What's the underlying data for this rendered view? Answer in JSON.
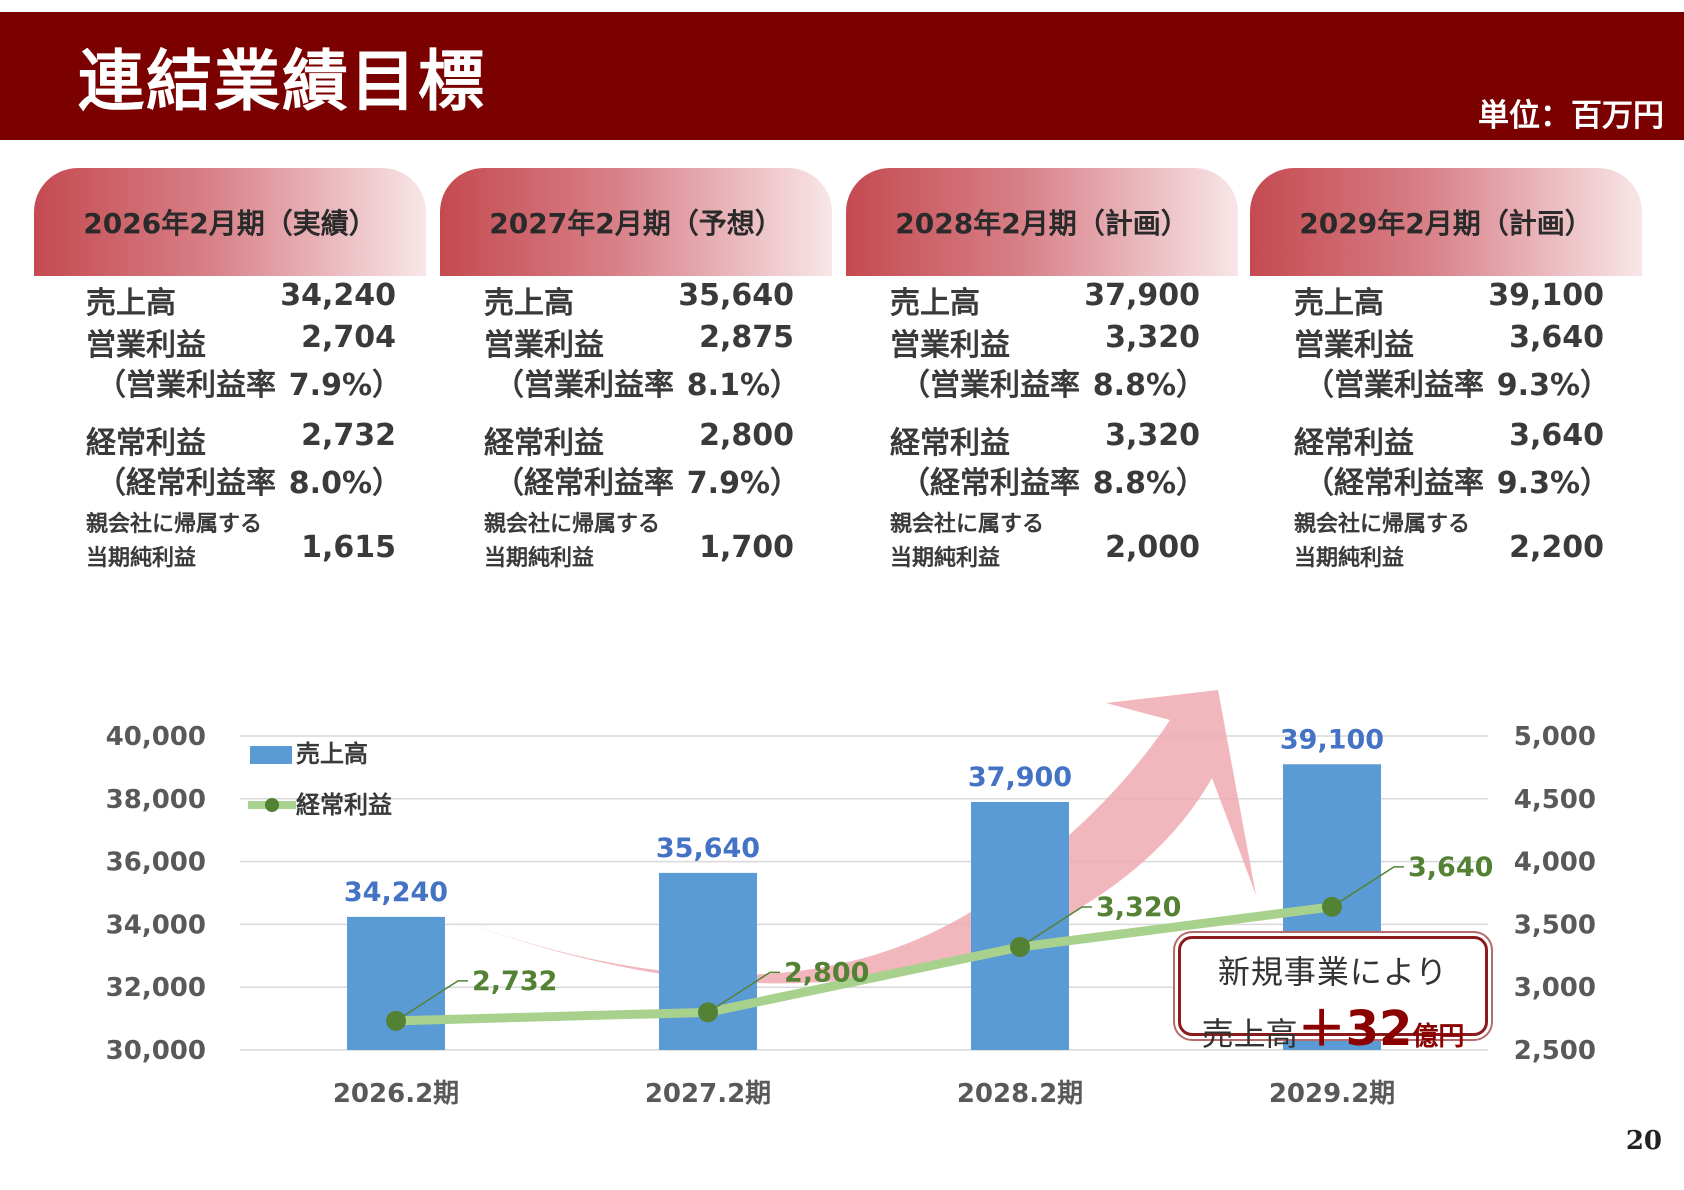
{
  "header": {
    "title": "連結業績目標",
    "unit": "単位：百万円"
  },
  "labels": {
    "sales": "売上高",
    "op_income": "営業利益",
    "op_margin": "（営業利益率",
    "ord_income": "経常利益",
    "ord_margin": "（経常利益率"
  },
  "columns": [
    {
      "title": "2026年2月期（実績）",
      "sales": "34,240",
      "op_income": "2,704",
      "op_margin": "7.9%）",
      "ord_income": "2,732",
      "ord_margin": "8.0%）",
      "net_label_1": "親会社に帰属する",
      "net_label_2": "当期純利益",
      "net_income": "1,615"
    },
    {
      "title": "2027年2月期（予想）",
      "sales": "35,640",
      "op_income": "2,875",
      "op_margin": "8.1%）",
      "ord_income": "2,800",
      "ord_margin": "7.9%）",
      "net_label_1": "親会社に帰属する",
      "net_label_2": "当期純利益",
      "net_income": "1,700"
    },
    {
      "title": "2028年2月期（計画）",
      "sales": "37,900",
      "op_income": "3,320",
      "op_margin": "8.8%）",
      "ord_income": "3,320",
      "ord_margin": "8.8%）",
      "net_label_1": "親会社に属する",
      "net_label_2": "当期純利益",
      "net_income": "2,000"
    },
    {
      "title": "2029年2月期（計画）",
      "sales": "39,100",
      "op_income": "3,640",
      "op_margin": "9.3%）",
      "ord_income": "3,640",
      "ord_margin": "9.3%）",
      "net_label_1": "親会社に帰属する",
      "net_label_2": "当期純利益",
      "net_income": "2,200"
    }
  ],
  "chart_data": {
    "type": "bar",
    "categories": [
      "2026.2期",
      "2027.2期",
      "2028.2期",
      "2029.2期"
    ],
    "series": [
      {
        "name": "売上高",
        "type": "bar",
        "axis": "left",
        "values": [
          34240,
          35640,
          37900,
          39100
        ],
        "labels": [
          "34,240",
          "35,640",
          "37,900",
          "39,100"
        ],
        "color": "#5b9bd5"
      },
      {
        "name": "経常利益",
        "type": "line",
        "axis": "right",
        "values": [
          2732,
          2800,
          3320,
          3640
        ],
        "labels": [
          "2,732",
          "2,800",
          "3,320",
          "3,640"
        ],
        "color": "#a9d18e",
        "marker_color": "#548235"
      }
    ],
    "ylim_left": [
      30000,
      40000
    ],
    "ylim_right": [
      2500,
      5000
    ],
    "yticks_left": [
      "30,000",
      "32,000",
      "34,000",
      "36,000",
      "38,000",
      "40,000"
    ],
    "yticks_right": [
      "2,500",
      "3,000",
      "3,500",
      "4,000",
      "4,500",
      "5,000"
    ],
    "grid": true,
    "legend": "top-left",
    "bar_label_color": "#4472c4",
    "line_label_color": "#548235",
    "arrow_color": "#eeaab0"
  },
  "callout": {
    "line1": "新規事業により",
    "prefix": "売上高",
    "plus": "＋32",
    "suffix": "億円"
  },
  "page_number": "20"
}
